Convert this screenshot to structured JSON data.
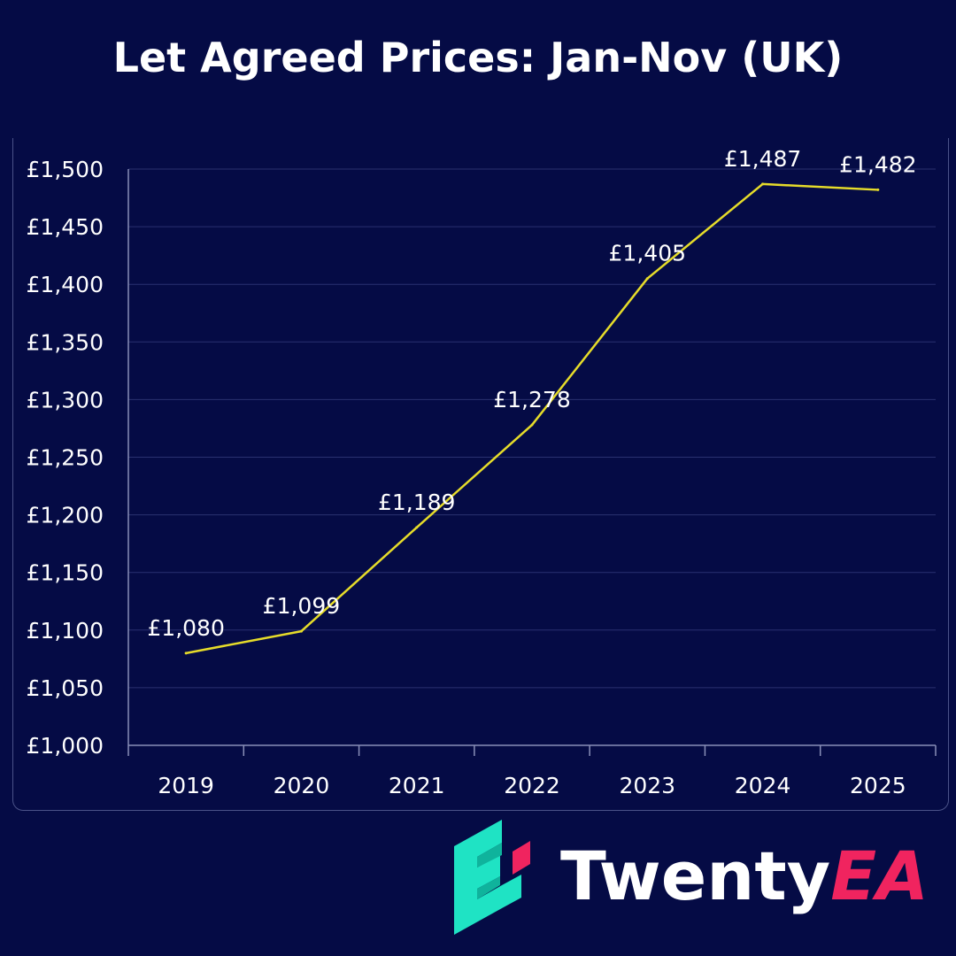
{
  "title": "Let Agreed Prices: Jan-Nov (UK)",
  "colors": {
    "background": "#050b45",
    "line": "#e6dc2a",
    "grid": "#2a3170",
    "text": "#ffffff",
    "logo_teal": "#1fe3c4",
    "logo_pink": "#f0245f"
  },
  "logo": {
    "brand_main": "Twenty",
    "brand_accent": "EA",
    "icon": "twentyea-logo-icon"
  },
  "chart_data": {
    "type": "line",
    "title": "Let Agreed Prices: Jan-Nov (UK)",
    "xlabel": "",
    "ylabel": "",
    "categories": [
      "2019",
      "2020",
      "2021",
      "2022",
      "2023",
      "2024",
      "2025"
    ],
    "series": [
      {
        "name": "Let Agreed Price",
        "values": [
          1080,
          1099,
          1189,
          1278,
          1405,
          1487,
          1482
        ],
        "labels": [
          "£1,080",
          "£1,099",
          "£1,189",
          "£1,278",
          "£1,405",
          "£1,487",
          "£1,482"
        ]
      }
    ],
    "ylim": [
      1000,
      1500
    ],
    "yticks": [
      1000,
      1050,
      1100,
      1150,
      1200,
      1250,
      1300,
      1350,
      1400,
      1450,
      1500
    ],
    "ytick_labels": [
      "£1,000",
      "£1,050",
      "£1,100",
      "£1,150",
      "£1,200",
      "£1,250",
      "£1,300",
      "£1,350",
      "£1,400",
      "£1,450",
      "£1,500"
    ],
    "grid": true,
    "legend": "none"
  }
}
